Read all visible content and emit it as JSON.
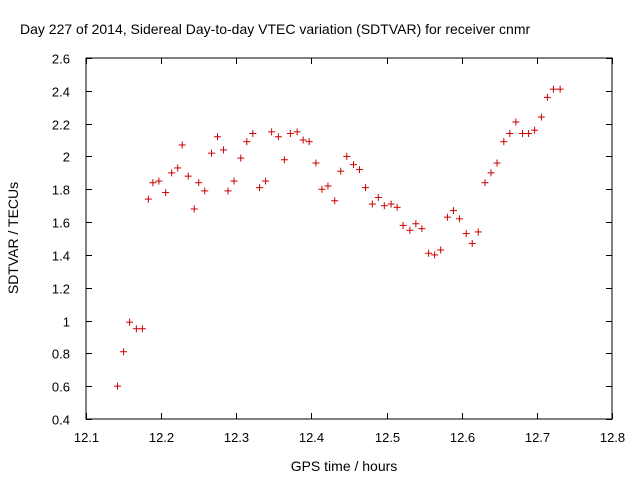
{
  "chart_data": {
    "type": "scatter",
    "title": "Day 227 of 2014, Sidereal Day-to-day VTEC variation (SDTVAR) for receiver cnmr",
    "xlabel": "GPS time / hours",
    "ylabel": "SDTVAR / TECUs",
    "xlim": [
      12.1,
      12.8
    ],
    "ylim": [
      0.4,
      2.6
    ],
    "xticks": [
      "12.1",
      "12.2",
      "12.3",
      "12.4",
      "12.5",
      "12.6",
      "12.7",
      "12.8"
    ],
    "yticks": [
      "0.4",
      "0.6",
      "0.8",
      "1",
      "1.2",
      "1.4",
      "1.6",
      "1.8",
      "2",
      "2.2",
      "2.4",
      "2.6"
    ],
    "grid": false,
    "marker": "+",
    "color": "#cc0000",
    "series": [
      {
        "name": "SDTVAR",
        "x": [
          12.142,
          12.15,
          12.158,
          12.167,
          12.175,
          12.183,
          12.189,
          12.197,
          12.206,
          12.214,
          12.222,
          12.228,
          12.236,
          12.244,
          12.25,
          12.258,
          12.267,
          12.275,
          12.283,
          12.289,
          12.297,
          12.306,
          12.314,
          12.322,
          12.331,
          12.339,
          12.347,
          12.356,
          12.364,
          12.372,
          12.381,
          12.389,
          12.397,
          12.406,
          12.414,
          12.422,
          12.431,
          12.439,
          12.447,
          12.456,
          12.464,
          12.472,
          12.481,
          12.489,
          12.497,
          12.506,
          12.514,
          12.522,
          12.531,
          12.539,
          12.547,
          12.556,
          12.564,
          12.572,
          12.581,
          12.589,
          12.597,
          12.606,
          12.614,
          12.622,
          12.631,
          12.639,
          12.647,
          12.656,
          12.664,
          12.672,
          12.681,
          12.689,
          12.697,
          12.706,
          12.714,
          12.722,
          12.731
        ],
        "y": [
          0.6,
          0.81,
          0.99,
          0.95,
          0.95,
          1.74,
          1.84,
          1.85,
          1.78,
          1.9,
          1.93,
          2.07,
          1.88,
          1.68,
          1.84,
          1.79,
          2.02,
          2.12,
          2.04,
          1.79,
          1.85,
          1.99,
          2.09,
          2.14,
          1.81,
          1.85,
          2.15,
          2.12,
          1.98,
          2.14,
          2.15,
          2.1,
          2.09,
          1.96,
          1.8,
          1.82,
          1.73,
          1.91,
          2.0,
          1.95,
          1.92,
          1.81,
          1.71,
          1.75,
          1.7,
          1.71,
          1.69,
          1.58,
          1.55,
          1.59,
          1.56,
          1.41,
          1.4,
          1.43,
          1.63,
          1.67,
          1.62,
          1.53,
          1.47,
          1.54,
          1.84,
          1.9,
          1.96,
          2.09,
          2.14,
          2.21,
          2.14,
          2.14,
          2.16,
          2.24,
          2.36,
          2.41,
          2.41
        ]
      }
    ]
  }
}
